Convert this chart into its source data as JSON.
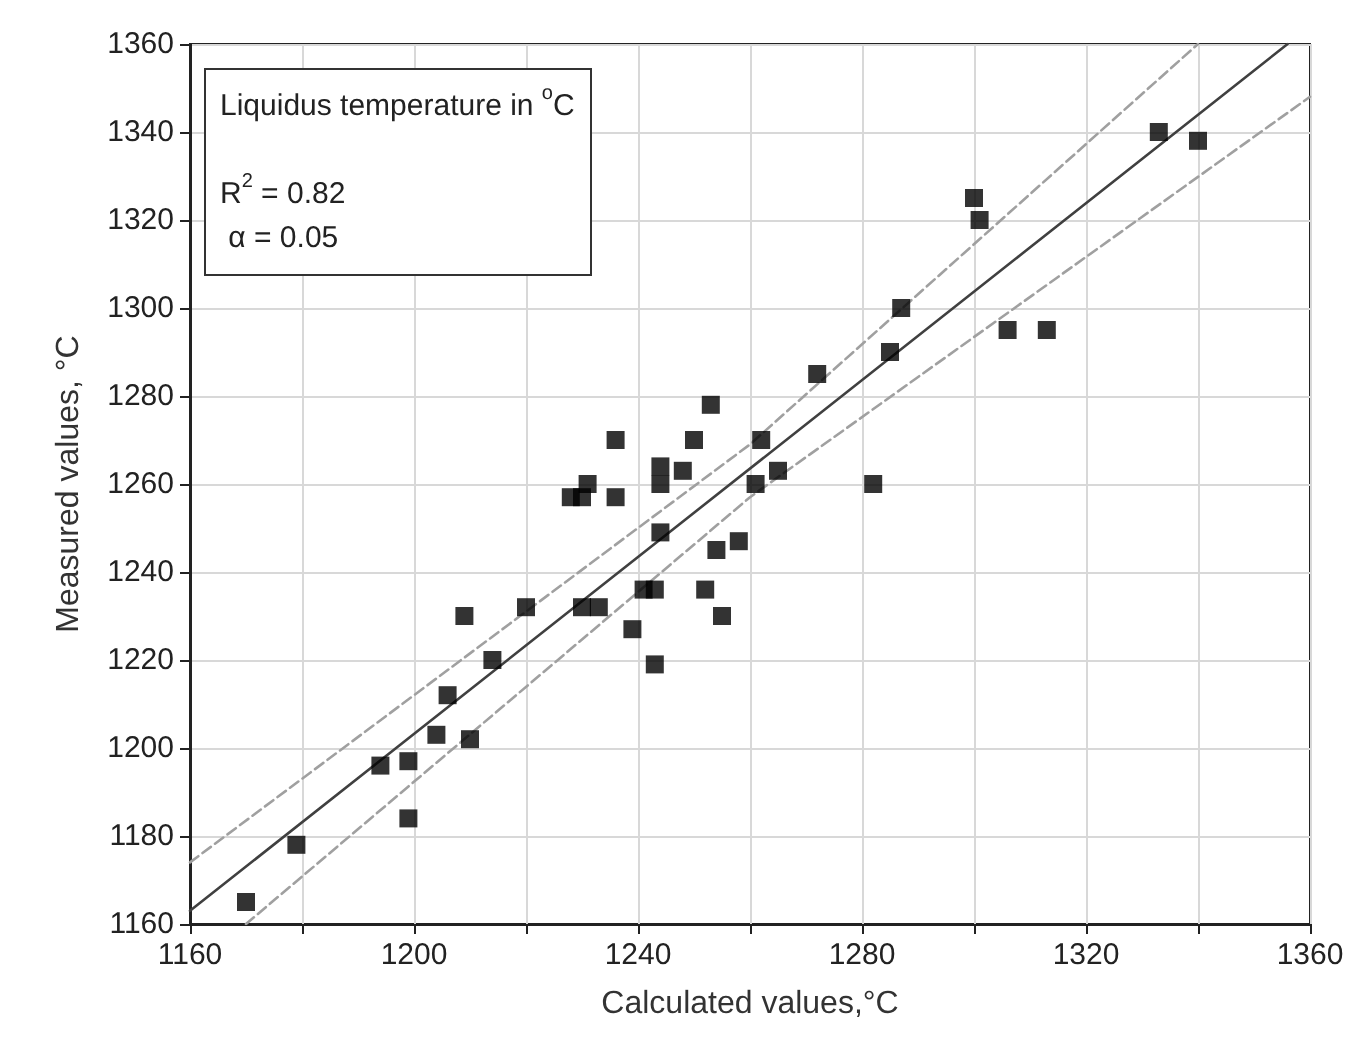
{
  "chart_data": {
    "type": "scatter",
    "xlabel": "Calculated values,°C",
    "ylabel": "Measured values, °C",
    "annotations": [
      "Liquidus temperature in $^{o}$C",
      "R$^{2}$ = 0.82",
      " α = 0.05"
    ],
    "xlim": [
      1160,
      1360
    ],
    "ylim": [
      1160,
      1360
    ],
    "xticks": [
      1160,
      {
        "value": 1180,
        "label": null
      },
      1200,
      {
        "value": 1220,
        "label": null
      },
      1240,
      {
        "value": 1260,
        "label": null
      },
      1280,
      {
        "value": 1300,
        "label": null
      },
      1320,
      {
        "value": 1340,
        "label": null
      },
      1360
    ],
    "yticks": [
      1160,
      1180,
      1200,
      1220,
      1240,
      1260,
      1280,
      1300,
      1320,
      1340,
      1360
    ],
    "grid": true,
    "marker": "square",
    "series": [
      {
        "color": "#000000",
        "x": [
          1170,
          1179,
          1194,
          1199,
          1199,
          1204,
          1206,
          1209,
          1210,
          1214,
          1220,
          1228,
          1230,
          1231,
          1230,
          1233,
          1236,
          1236,
          1239,
          1241,
          1243,
          1243,
          1244,
          1244,
          1244,
          1248,
          1250,
          1252,
          1253,
          1254,
          1255,
          1258,
          1261,
          1262,
          1265,
          1272,
          1282,
          1285,
          1287,
          1300,
          1301,
          1306,
          1313,
          1333,
          1340
        ],
        "values": [
          1165,
          1178,
          1196,
          1197,
          1184,
          1203,
          1212,
          1230,
          1202,
          1220,
          1232,
          1257,
          1257,
          1260,
          1232,
          1232,
          1270,
          1257,
          1227,
          1236,
          1236,
          1219,
          1264,
          1260,
          1249,
          1263,
          1270,
          1236,
          1278,
          1245,
          1230,
          1247,
          1260,
          1270,
          1263,
          1285,
          1260,
          1290,
          1300,
          1325,
          1320,
          1295,
          1295,
          1340,
          1338
        ]
      },
      {
        "type": "line",
        "color": "#404040",
        "marker": "none",
        "line_style": "solid",
        "x": [
          1160,
          1356
        ],
        "values": [
          1163,
          1360
        ]
      },
      {
        "type": "line",
        "color": "#a0a0a0",
        "marker": "none",
        "line_style": "dashed",
        "x": [
          1160,
          1260,
          1340
        ],
        "values": [
          1174,
          1269,
          1360
        ]
      },
      {
        "type": "line",
        "color": "#a0a0a0",
        "marker": "none",
        "line_style": "dashed",
        "x": [
          1170,
          1260,
          1360
        ],
        "values": [
          1160,
          1257,
          1348
        ]
      }
    ]
  }
}
